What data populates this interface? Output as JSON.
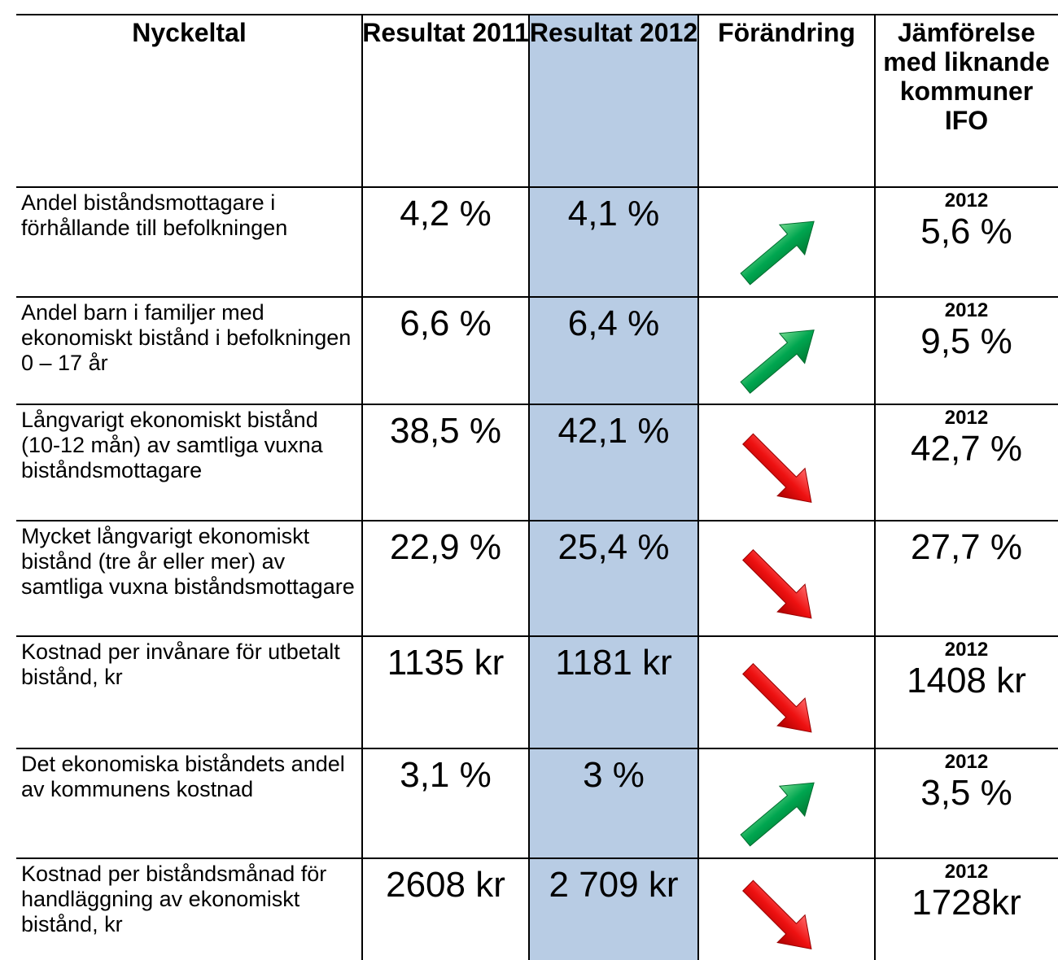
{
  "table": {
    "header": [
      "Nyckeltal",
      "Resultat 2011",
      "Resultat 2012",
      "Förändring",
      "Jämförelse med liknande kommuner IFO"
    ],
    "rows": [
      {
        "label": "Andel biståndsmottagare i förhållande till befolkningen",
        "r2011": "4,2 %",
        "r2012": "4,1 %",
        "compare_year": "2012",
        "compare": "5,6 %"
      },
      {
        "label": "Andel barn i familjer med ekonomiskt bistånd i befolkningen 0 – 17 år",
        "r2011": "6,6 %",
        "r2012": "6,4 %",
        "compare_year": "2012",
        "compare": "9,5 %"
      },
      {
        "label": "Långvarigt ekonomiskt bistånd (10-12 mån) av samtliga vuxna biståndsmottagare",
        "r2011": "38,5 %",
        "r2012": "42,1 %",
        "compare_year": "2012",
        "compare": "42,7 %"
      },
      {
        "label": "Mycket långvarigt ekonomiskt bistånd (tre år eller mer) av samtliga vuxna biståndsmottagare",
        "r2011": "22,9 %",
        "r2012": "25,4 %",
        "compare": "27,7 %"
      },
      {
        "label": "Kostnad per invånare för utbetalt bistånd, kr",
        "r2011": "1135 kr",
        "r2012": "1181 kr",
        "compare_year": "2012",
        "compare": "1408 kr"
      },
      {
        "label": "Det ekonomiska biståndets andel av kommunens kostnad",
        "r2011": "3,1 %",
        "r2012": "3 %",
        "compare_year": "2012",
        "compare": "3,5 %"
      },
      {
        "label": "Kostnad per biståndsmånad för handläggning av ekonomiskt bistånd, kr",
        "r2011": "2608 kr",
        "r2012": "2 709 kr",
        "compare_year": "2012",
        "compare": "1728kr"
      }
    ]
  }
}
